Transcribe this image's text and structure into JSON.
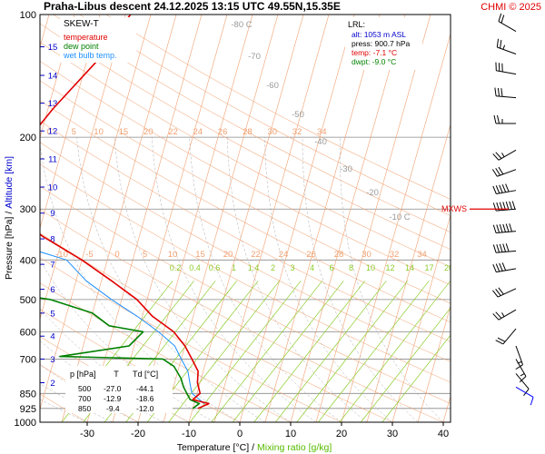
{
  "header": {
    "title": "Praha-Libus   descent   24.12.2025 13:15 UTC   49.55N,15.35E",
    "copyright": "CHMI © 2025"
  },
  "legend": {
    "chart_name": "SKEW-T",
    "items": [
      {
        "label": "temperature",
        "color": "#e00000"
      },
      {
        "label": "dew point",
        "color": "#008000"
      },
      {
        "label": "wet bulb temp.",
        "color": "#1e90ff"
      }
    ]
  },
  "lrl_box": {
    "heading": "LRL:",
    "alt": "alt: 1053 m ASL",
    "press": "press: 900.7 hPa",
    "temp": "temp: -7.1 °C",
    "dwpt": "dwpt: -9.0 °C"
  },
  "mxws_label": "MXWS",
  "axes": {
    "y_label_black": "Pressure [hPa]  /",
    "y_label_blue": "Altitude [km]",
    "x_label_black": "Temperature [°C]  /",
    "x_label_green": "Mixing ratio [g/kg]"
  },
  "table": {
    "headers": [
      "p [hPa]",
      "T",
      "Td [°C]"
    ],
    "rows": [
      [
        "500",
        "-27.0",
        "-44.1"
      ],
      [
        "700",
        "-12.9",
        "-18.6"
      ],
      [
        "850",
        "-9.4",
        "-12.0"
      ]
    ]
  },
  "colors": {
    "temperature": "#e00000",
    "dewpoint": "#008000",
    "wetbulb": "#1e90ff",
    "isotherm": "#f0a070",
    "mixing_ratio": "#8ccc2c",
    "adiabat": "#b0b0b0",
    "altitude": "#0000cc",
    "wind": "#000000",
    "wind_low": "#0000ff"
  },
  "chart_data": {
    "type": "skew-t",
    "x_ticks": [
      -30,
      -20,
      -10,
      0,
      10,
      20,
      30,
      40
    ],
    "pressure_ticks": [
      100,
      200,
      300,
      400,
      500,
      600,
      700,
      850,
      925,
      1000
    ],
    "altitude_ticks": [
      2,
      3,
      4,
      5,
      6,
      7,
      8,
      9,
      10,
      11,
      12,
      13,
      14,
      15
    ],
    "isotherm_labels_top": [
      0,
      5,
      10,
      15,
      20,
      22,
      24,
      26,
      28,
      30,
      32,
      34
    ],
    "isotherm_labels_mid": [
      -10,
      -5,
      0,
      5,
      10,
      15,
      20,
      22,
      24,
      26,
      28,
      30,
      32,
      34
    ],
    "mixing_ratio_labels": [
      "0.2",
      "0.4",
      "0.6",
      "1",
      "1.4",
      "2",
      "3",
      "4",
      "6",
      "8",
      "10",
      "12",
      "14",
      "17",
      "20",
      "25"
    ],
    "adiabat_labels": [
      "-80 C",
      "-70",
      "-60",
      "-50",
      "-40",
      "-30",
      "-20",
      "-10 C"
    ],
    "temperature": [
      [
        100,
        -44
      ],
      [
        130,
        -48
      ],
      [
        170,
        -54
      ],
      [
        200,
        -57
      ],
      [
        250,
        -62
      ],
      [
        300,
        -58
      ],
      [
        350,
        -49
      ],
      [
        400,
        -40
      ],
      [
        450,
        -33
      ],
      [
        500,
        -27.0
      ],
      [
        550,
        -23
      ],
      [
        600,
        -18
      ],
      [
        650,
        -15
      ],
      [
        700,
        -12.9
      ],
      [
        750,
        -11
      ],
      [
        800,
        -10.5
      ],
      [
        850,
        -9.4
      ],
      [
        880,
        -10.5
      ],
      [
        900,
        -7.1
      ],
      [
        925,
        -9
      ]
    ],
    "dewpoint": [
      [
        100,
        -68
      ],
      [
        140,
        -76
      ],
      [
        180,
        -81
      ],
      [
        200,
        -78
      ],
      [
        230,
        -80
      ],
      [
        260,
        -79
      ],
      [
        300,
        -75
      ],
      [
        340,
        -69
      ],
      [
        370,
        -68
      ],
      [
        390,
        -56
      ],
      [
        420,
        -65
      ],
      [
        460,
        -63
      ],
      [
        480,
        -54
      ],
      [
        500,
        -44.1
      ],
      [
        540,
        -35
      ],
      [
        580,
        -31
      ],
      [
        600,
        -24
      ],
      [
        650,
        -26
      ],
      [
        690,
        -39
      ],
      [
        700,
        -18.6
      ],
      [
        730,
        -16
      ],
      [
        780,
        -14
      ],
      [
        820,
        -13
      ],
      [
        850,
        -12.0
      ],
      [
        880,
        -11
      ],
      [
        900,
        -9.0
      ],
      [
        925,
        -10
      ]
    ],
    "wetbulb": [
      [
        360,
        -56
      ],
      [
        400,
        -43
      ],
      [
        450,
        -38
      ],
      [
        500,
        -32
      ],
      [
        550,
        -26
      ],
      [
        600,
        -21
      ],
      [
        650,
        -17
      ],
      [
        700,
        -15
      ],
      [
        750,
        -13
      ],
      [
        800,
        -12
      ],
      [
        850,
        -11
      ],
      [
        900,
        -8
      ]
    ],
    "wind_barbs": [
      {
        "p": 110,
        "dir": 300,
        "speed": 20
      },
      {
        "p": 125,
        "dir": 290,
        "speed": 25
      },
      {
        "p": 140,
        "dir": 280,
        "speed": 30
      },
      {
        "p": 160,
        "dir": 275,
        "speed": 30
      },
      {
        "p": 185,
        "dir": 270,
        "speed": 25
      },
      {
        "p": 215,
        "dir": 240,
        "speed": 25
      },
      {
        "p": 240,
        "dir": 250,
        "speed": 30
      },
      {
        "p": 270,
        "dir": 260,
        "speed": 50
      },
      {
        "p": 300,
        "dir": 265,
        "speed": 70
      },
      {
        "p": 340,
        "dir": 265,
        "speed": 60
      },
      {
        "p": 380,
        "dir": 265,
        "speed": 50
      },
      {
        "p": 420,
        "dir": 260,
        "speed": 40
      },
      {
        "p": 470,
        "dir": 245,
        "speed": 30
      },
      {
        "p": 530,
        "dir": 240,
        "speed": 25
      },
      {
        "p": 590,
        "dir": 220,
        "speed": 20
      },
      {
        "p": 650,
        "dir": 160,
        "speed": 15
      },
      {
        "p": 700,
        "dir": 150,
        "speed": 15
      },
      {
        "p": 760,
        "dir": 140,
        "speed": 10
      },
      {
        "p": 820,
        "dir": 120,
        "speed": 10
      }
    ],
    "mxws_pressure": 300
  }
}
